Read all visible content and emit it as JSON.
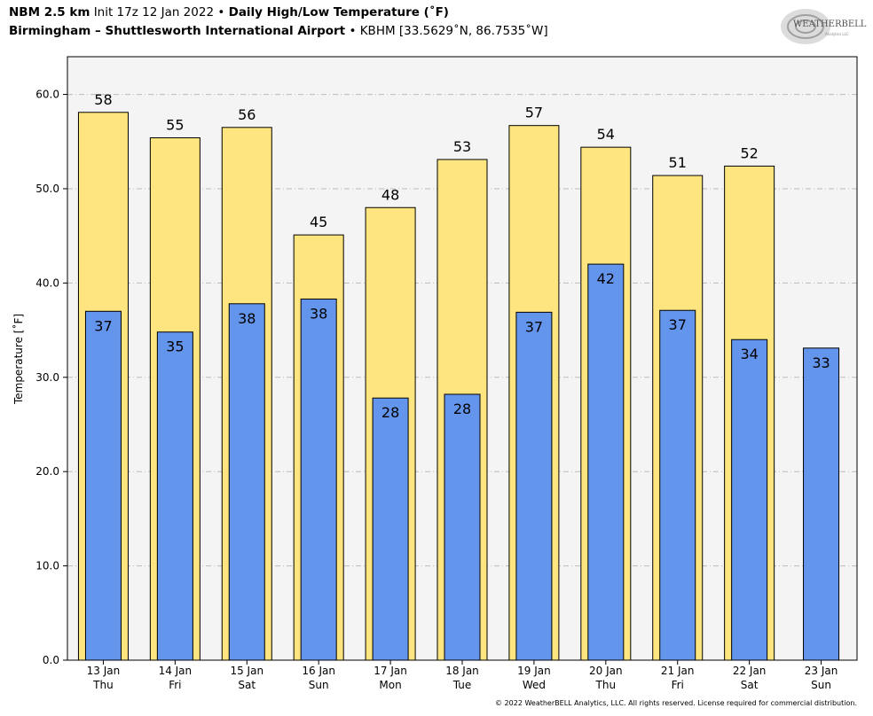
{
  "header": {
    "model": "NBM 2.5 km",
    "init": "Init 17z 12 Jan 2022",
    "sep1": "•",
    "product": "Daily High/Low Temperature (˚F)",
    "station_name": "Birmingham – Shuttlesworth International Airport",
    "sep2": "•",
    "station_info": "KBHM [33.5629˚N, 86.7535˚W]"
  },
  "logo": {
    "text": "WEATHERBELL",
    "sub": "Analytics LLC",
    "icon": "swirl-logo-icon"
  },
  "copyright": "© 2022 WeatherBELL Analytics, LLC. All rights reserved. License required for commercial distribution.",
  "colors": {
    "high": "#ffe57f",
    "low": "#6495ed",
    "plot_bg": "#f4f4f4",
    "grid": "#bbbbbb"
  },
  "chart_data": {
    "type": "bar",
    "ylabel": "Temperature [˚F]",
    "ylim": [
      0,
      64
    ],
    "yticks": [
      "0.0",
      "10.0",
      "20.0",
      "30.0",
      "40.0",
      "50.0",
      "60.0"
    ],
    "ytick_values": [
      0,
      10,
      20,
      30,
      40,
      50,
      60
    ],
    "grid": true,
    "categories": [
      "13 Jan",
      "14 Jan",
      "15 Jan",
      "16 Jan",
      "17 Jan",
      "18 Jan",
      "19 Jan",
      "20 Jan",
      "21 Jan",
      "22 Jan",
      "23 Jan"
    ],
    "days": [
      "Thu",
      "Fri",
      "Sat",
      "Sun",
      "Mon",
      "Tue",
      "Wed",
      "Thu",
      "Fri",
      "Sat",
      "Sun"
    ],
    "series": [
      {
        "values": [
          58.1,
          55.4,
          56.5,
          45.1,
          48.0,
          53.1,
          56.7,
          54.4,
          51.4,
          52.4,
          null
        ],
        "labels": [
          "58",
          "55",
          "56",
          "45",
          "48",
          "53",
          "57",
          "54",
          "51",
          "52",
          ""
        ]
      },
      {
        "values": [
          37.0,
          34.8,
          37.8,
          38.3,
          27.8,
          28.2,
          36.9,
          42.0,
          37.1,
          34.0,
          33.1
        ],
        "labels": [
          "37",
          "35",
          "38",
          "38",
          "28",
          "28",
          "37",
          "42",
          "37",
          "34",
          "33"
        ]
      }
    ]
  }
}
